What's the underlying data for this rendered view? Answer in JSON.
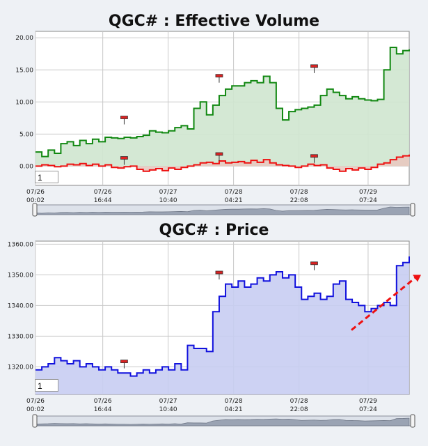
{
  "charts": [
    {
      "title": "QGC# : Effective Volume",
      "input_value": "1",
      "colors": {
        "series1": "#118811",
        "series2": "#ee1111",
        "fill1": "#cfe6cf",
        "fill2": "#e8c9c0",
        "marker": "#dd2222"
      },
      "chart_data": {
        "type": "line",
        "ylim": [
          -3,
          21
        ],
        "yticks": [
          "20.00",
          "15.00",
          "10.00",
          "5.00",
          "0.00"
        ],
        "ytick_values": [
          20,
          15,
          10,
          5,
          0
        ],
        "xticks": [
          {
            "date": "07/26",
            "time": "00:02"
          },
          {
            "date": "07/26",
            "time": "16:44"
          },
          {
            "date": "07/27",
            "time": "10:40"
          },
          {
            "date": "07/28",
            "time": "04:21"
          },
          {
            "date": "07/28",
            "time": "22:08"
          },
          {
            "date": "07/29",
            "time": "07:24"
          }
        ],
        "series": [
          {
            "values": [
              2.2,
              1.5,
              2.5,
              2.0,
              3.5,
              3.8,
              3.2,
              4.0,
              3.5,
              4.2,
              3.8,
              4.5,
              4.4,
              4.3,
              4.5,
              4.4,
              4.6,
              4.8,
              5.5,
              5.3,
              5.2,
              5.5,
              6.0,
              6.3,
              5.8,
              9.0,
              10.0,
              8.0,
              9.5,
              11.0,
              12.0,
              12.5,
              12.5,
              13.0,
              13.3,
              13.0,
              14.0,
              13.0,
              9.0,
              7.2,
              8.5,
              8.8,
              9.0,
              9.2,
              9.5,
              11.0,
              12.0,
              11.5,
              11.0,
              10.5,
              10.8,
              10.5,
              10.3,
              10.2,
              10.4,
              15.0,
              18.5,
              17.5,
              18.0,
              18.2
            ]
          },
          {
            "values": [
              0.0,
              0.2,
              0.1,
              -0.1,
              0.0,
              0.3,
              0.2,
              0.4,
              0.1,
              0.3,
              0.0,
              0.2,
              -0.2,
              -0.3,
              -0.1,
              0.0,
              -0.5,
              -0.8,
              -0.6,
              -0.4,
              -0.7,
              -0.3,
              -0.5,
              -0.2,
              0.0,
              0.2,
              0.5,
              0.6,
              0.4,
              0.8,
              0.5,
              0.6,
              0.7,
              0.5,
              0.9,
              0.6,
              1.0,
              0.5,
              0.2,
              0.1,
              0.0,
              -0.2,
              0.0,
              0.3,
              0.1,
              0.2,
              -0.3,
              -0.5,
              -0.8,
              -0.4,
              -0.6,
              -0.3,
              -0.5,
              -0.2,
              0.3,
              0.5,
              1.0,
              1.4,
              1.6,
              1.8
            ]
          }
        ],
        "markers": [
          {
            "x": 14,
            "y": 6.5,
            "dir": "up",
            "series": 0
          },
          {
            "x": 29,
            "y": 13.0,
            "dir": "up",
            "series": 0
          },
          {
            "x": 44,
            "y": 14.5,
            "dir": "up",
            "series": 0
          },
          {
            "x": 14,
            "y": 0.2,
            "dir": "up",
            "series": 1
          },
          {
            "x": 29,
            "y": 0.8,
            "dir": "up",
            "series": 1
          },
          {
            "x": 44,
            "y": 0.5,
            "dir": "up",
            "series": 1
          }
        ]
      }
    },
    {
      "title": "QGC# : Price",
      "input_value": "1",
      "colors": {
        "series1": "#1111dd",
        "fill1": "#c8cdf2",
        "marker": "#dd2222",
        "trend": "#ee1111"
      },
      "chart_data": {
        "type": "area",
        "ylim": [
          1311,
          1361
        ],
        "yticks": [
          "1360.00",
          "1350.00",
          "1340.00",
          "1330.00",
          "1320.00"
        ],
        "ytick_values": [
          1360,
          1350,
          1340,
          1330,
          1320
        ],
        "xticks": [
          {
            "date": "07/26",
            "time": "00:02"
          },
          {
            "date": "07/26",
            "time": "16:44"
          },
          {
            "date": "07/27",
            "time": "10:40"
          },
          {
            "date": "07/28",
            "time": "04:21"
          },
          {
            "date": "07/28",
            "time": "22:08"
          },
          {
            "date": "07/29",
            "time": "07:24"
          }
        ],
        "series": [
          {
            "values": [
              1319,
              1320,
              1321,
              1323,
              1322,
              1321,
              1322,
              1320,
              1321,
              1320,
              1319,
              1320,
              1319,
              1318,
              1318,
              1317,
              1318,
              1319,
              1318,
              1319,
              1320,
              1319,
              1321,
              1319,
              1327,
              1326,
              1326,
              1325,
              1338,
              1343,
              1347,
              1346,
              1348,
              1346,
              1347,
              1349,
              1348,
              1350,
              1351,
              1349,
              1350,
              1346,
              1342,
              1343,
              1344,
              1342,
              1343,
              1347,
              1348,
              1342,
              1341,
              1340,
              1338,
              1339,
              1340,
              1341,
              1340,
              1353,
              1354,
              1356
            ]
          }
        ],
        "markers": [
          {
            "x": 14,
            "y": 1319.5,
            "dir": "up",
            "series": 0
          },
          {
            "x": 29,
            "y": 1348.5,
            "dir": "up",
            "series": 0
          },
          {
            "x": 44,
            "y": 1351.5,
            "dir": "up",
            "series": 0
          }
        ]
      }
    }
  ]
}
